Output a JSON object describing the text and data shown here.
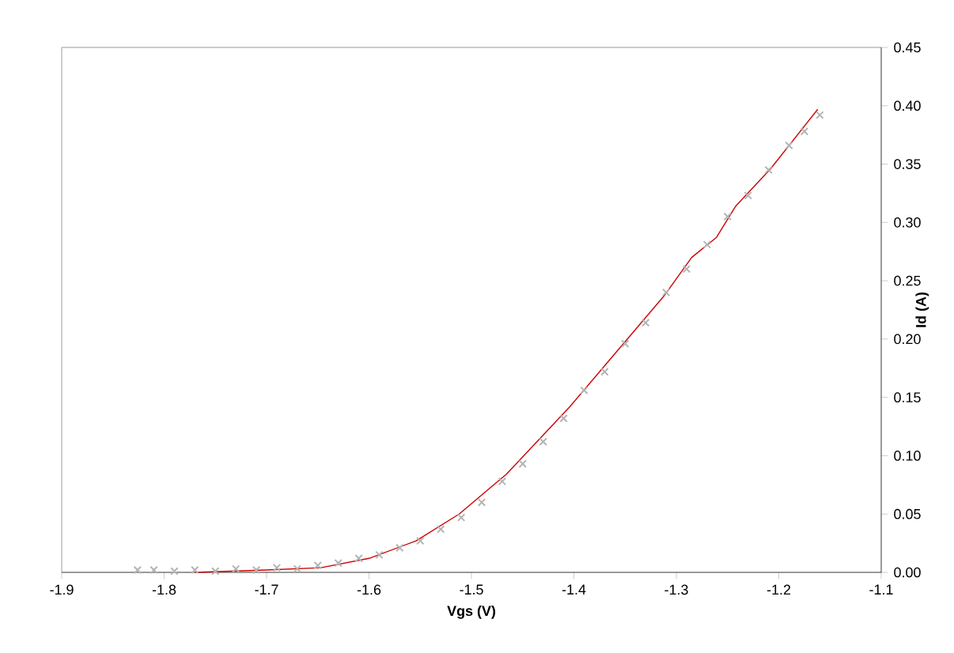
{
  "chart_data": {
    "type": "scatter",
    "xlabel": "Vgs   (V)",
    "ylabel": "Id   (A)",
    "xlim": [
      -1.9,
      -1.1
    ],
    "xticks": [
      -1.9,
      -1.8,
      -1.7,
      -1.6,
      -1.5,
      -1.4,
      -1.3,
      -1.2,
      -1.1
    ],
    "ylim": [
      0,
      0.45
    ],
    "yticks": [
      {
        "value": 0,
        "label": "0.00"
      },
      {
        "value": 0.05,
        "label": "0.05"
      },
      {
        "value": 0.1,
        "label": "0.10"
      },
      {
        "value": 0.15,
        "label": "0.15"
      },
      {
        "value": 0.2,
        "label": "0.20"
      },
      {
        "value": 0.25,
        "label": "0.25"
      },
      {
        "value": 0.3,
        "label": "0.30"
      },
      {
        "value": 0.35,
        "label": "0.35"
      },
      {
        "value": 0.4,
        "label": "0.40"
      },
      {
        "value": 0.45,
        "label": "0.45"
      }
    ],
    "grid": false,
    "marker": "cross",
    "series": [
      {
        "color": "#b4b4b4",
        "x": [
          -1.826,
          -1.81,
          -1.79,
          -1.77,
          -1.75,
          -1.73,
          -1.71,
          -1.69,
          -1.67,
          -1.65,
          -1.63,
          -1.61,
          -1.59,
          -1.57,
          -1.55,
          -1.53,
          -1.51,
          -1.49,
          -1.47,
          -1.45,
          -1.43,
          -1.41,
          -1.39,
          -1.37,
          -1.35,
          -1.33,
          -1.31,
          -1.29,
          -1.27,
          -1.25,
          -1.23,
          -1.21,
          -1.19,
          -1.175,
          -1.16
        ],
        "values": [
          0.002,
          0.002,
          0.001,
          0.002,
          0.001,
          0.003,
          0.002,
          0.004,
          0.003,
          0.006,
          0.008,
          0.012,
          0.015,
          0.021,
          0.027,
          0.037,
          0.047,
          0.06,
          0.078,
          0.093,
          0.112,
          0.132,
          0.156,
          0.172,
          0.196,
          0.214,
          0.24,
          0.26,
          0.281,
          0.305,
          0.323,
          0.345,
          0.366,
          0.378,
          0.392
        ]
      },
      {
        "type": "line",
        "color": "#cc0000",
        "marker": "none",
        "x": [
          -1.77,
          -1.7,
          -1.647,
          -1.6,
          -1.554,
          -1.512,
          -1.481,
          -1.466,
          -1.404,
          -1.342,
          -1.312,
          -1.285,
          -1.261,
          -1.242,
          -1.208,
          -1.162
        ],
        "values": [
          0.0,
          0.002,
          0.004,
          0.012,
          0.027,
          0.05,
          0.073,
          0.084,
          0.142,
          0.206,
          0.237,
          0.27,
          0.287,
          0.314,
          0.346,
          0.397
        ]
      }
    ]
  }
}
